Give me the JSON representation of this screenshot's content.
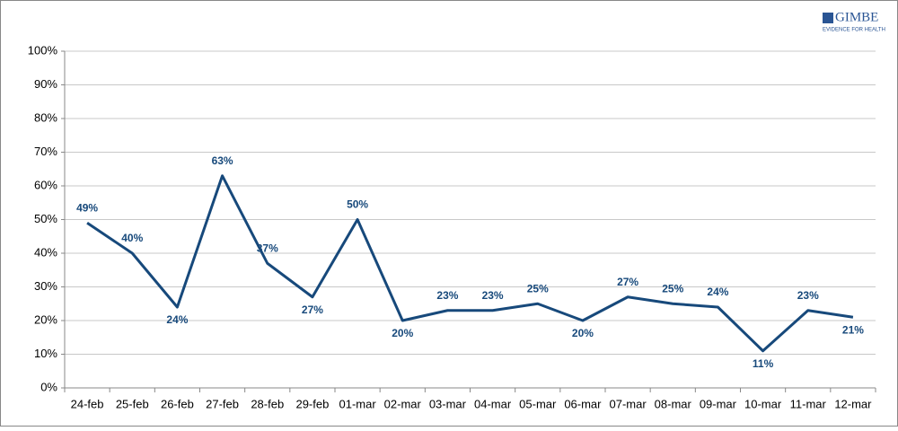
{
  "logo": {
    "name": "GIMBE",
    "tagline": "EVIDENCE FOR HEALTH"
  },
  "chart_data": {
    "type": "line",
    "categories": [
      "24-feb",
      "25-feb",
      "26-feb",
      "27-feb",
      "28-feb",
      "29-feb",
      "01-mar",
      "02-mar",
      "03-mar",
      "04-mar",
      "05-mar",
      "06-mar",
      "07-mar",
      "08-mar",
      "09-mar",
      "10-mar",
      "11-mar",
      "12-mar"
    ],
    "series": [
      {
        "color": "#17497b",
        "values": [
          49,
          40,
          24,
          63,
          37,
          27,
          50,
          20,
          23,
          23,
          25,
          20,
          27,
          25,
          24,
          11,
          23,
          21
        ],
        "value_labels": [
          "49%",
          "40%",
          "24%",
          "63%",
          "37%",
          "27%",
          "50%",
          "20%",
          "23%",
          "23%",
          "25%",
          "20%",
          "27%",
          "25%",
          "24%",
          "11%",
          "23%",
          "21%"
        ]
      }
    ],
    "ylim": [
      0,
      100
    ],
    "yticks": [
      {
        "value": 0,
        "label": "0%"
      },
      {
        "value": 10,
        "label": "10%"
      },
      {
        "value": 20,
        "label": "20%"
      },
      {
        "value": 30,
        "label": "30%"
      },
      {
        "value": 40,
        "label": "40%"
      },
      {
        "value": 50,
        "label": "50%"
      },
      {
        "value": 60,
        "label": "60%"
      },
      {
        "value": 70,
        "label": "70%"
      },
      {
        "value": 80,
        "label": "80%"
      },
      {
        "value": 90,
        "label": "90%"
      },
      {
        "value": 100,
        "label": "100%"
      }
    ],
    "grid": true
  }
}
